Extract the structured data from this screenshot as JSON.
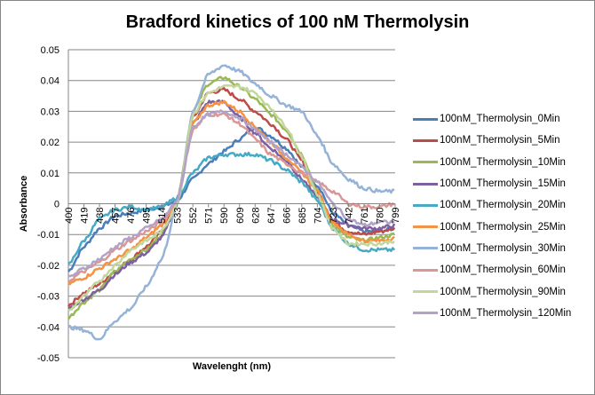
{
  "chart_data": {
    "type": "line",
    "title": "Bradford kinetics of 100 nM Thermolysin",
    "xlabel": "Wavelenght (nm)",
    "ylabel": "Absorbance",
    "ylim": [
      -0.05,
      0.05
    ],
    "yticks": [
      "0.05",
      "0.04",
      "0.03",
      "0.02",
      "0.01",
      "0",
      "-0.01",
      "-0.02",
      "-0.03",
      "-0.04",
      "-0.05"
    ],
    "ytick_values": [
      0.05,
      0.04,
      0.03,
      0.02,
      0.01,
      0,
      -0.01,
      -0.02,
      -0.03,
      -0.04,
      -0.05
    ],
    "grid": true,
    "legend_position": "right",
    "x": [
      400,
      419,
      438,
      457,
      476,
      495,
      514,
      533,
      552,
      571,
      590,
      609,
      628,
      647,
      666,
      685,
      704,
      723,
      742,
      761,
      780,
      799
    ],
    "xtick_labels": [
      "400",
      "419",
      "438",
      "457",
      "476",
      "495",
      "514",
      "533",
      "552",
      "571",
      "590",
      "609",
      "628",
      "647",
      "666",
      "685",
      "704",
      "723",
      "742",
      "761",
      "780",
      "799"
    ],
    "series": [
      {
        "name": "100nM_Thermolysin_0Min",
        "color": "#4a7ebb",
        "values": [
          -0.022,
          -0.014,
          -0.008,
          -0.004,
          -0.003,
          -0.002,
          -0.001,
          0.001,
          0.008,
          0.013,
          0.017,
          0.021,
          0.025,
          0.022,
          0.018,
          0.012,
          0.006,
          -0.003,
          -0.007,
          -0.009,
          -0.009,
          -0.008
        ]
      },
      {
        "name": "100nM_Thermolysin_5Min",
        "color": "#be4b48",
        "values": [
          -0.033,
          -0.029,
          -0.026,
          -0.022,
          -0.018,
          -0.014,
          -0.009,
          0.001,
          0.028,
          0.036,
          0.037,
          0.034,
          0.03,
          0.026,
          0.021,
          0.014,
          0.004,
          -0.006,
          -0.009,
          -0.01,
          -0.009,
          -0.008
        ]
      },
      {
        "name": "100nM_Thermolysin_10Min",
        "color": "#98b954",
        "values": [
          -0.037,
          -0.032,
          -0.028,
          -0.022,
          -0.018,
          -0.015,
          -0.01,
          0.001,
          0.03,
          0.039,
          0.041,
          0.038,
          0.034,
          0.029,
          0.024,
          0.016,
          0.004,
          -0.007,
          -0.011,
          -0.012,
          -0.011,
          -0.01
        ]
      },
      {
        "name": "100nM_Thermolysin_15Min",
        "color": "#7d60a0",
        "values": [
          -0.034,
          -0.031,
          -0.028,
          -0.023,
          -0.019,
          -0.016,
          -0.011,
          0.0,
          0.026,
          0.033,
          0.033,
          0.028,
          0.023,
          0.018,
          0.014,
          0.008,
          0.002,
          -0.005,
          -0.007,
          -0.008,
          -0.008,
          -0.007
        ]
      },
      {
        "name": "100nM_Thermolysin_20Min",
        "color": "#46aac5",
        "values": [
          -0.02,
          -0.012,
          -0.005,
          -0.002,
          -0.001,
          -0.002,
          -0.001,
          0.002,
          0.01,
          0.015,
          0.016,
          0.016,
          0.016,
          0.014,
          0.011,
          0.007,
          0.001,
          -0.008,
          -0.013,
          -0.015,
          -0.015,
          -0.015
        ]
      },
      {
        "name": "100nM_Thermolysin_25Min",
        "color": "#f69240",
        "values": [
          -0.026,
          -0.024,
          -0.021,
          -0.018,
          -0.015,
          -0.011,
          -0.007,
          0.001,
          0.026,
          0.032,
          0.033,
          0.03,
          0.025,
          0.02,
          0.015,
          0.01,
          0.004,
          -0.006,
          -0.01,
          -0.012,
          -0.012,
          -0.011
        ]
      },
      {
        "name": "100nM_Thermolysin_30Min",
        "color": "#95b3d7",
        "values": [
          -0.04,
          -0.041,
          -0.044,
          -0.038,
          -0.034,
          -0.027,
          -0.018,
          0.0,
          0.03,
          0.042,
          0.045,
          0.043,
          0.039,
          0.035,
          0.032,
          0.03,
          0.022,
          0.013,
          0.008,
          0.005,
          0.004,
          0.004
        ]
      },
      {
        "name": "100nM_Thermolysin_60Min",
        "color": "#d99795",
        "values": [
          -0.025,
          -0.022,
          -0.019,
          -0.015,
          -0.012,
          -0.009,
          -0.006,
          0.001,
          0.024,
          0.029,
          0.029,
          0.026,
          0.021,
          0.016,
          0.013,
          0.01,
          0.007,
          0.004,
          0.0,
          -0.001,
          -0.001,
          0.0
        ]
      },
      {
        "name": "100nM_Thermolysin_90Min",
        "color": "#c3d69b",
        "values": [
          -0.035,
          -0.03,
          -0.025,
          -0.02,
          -0.015,
          -0.012,
          -0.009,
          0.0,
          0.029,
          0.036,
          0.038,
          0.038,
          0.036,
          0.031,
          0.025,
          0.015,
          0.003,
          -0.008,
          -0.013,
          -0.013,
          -0.013,
          -0.012
        ]
      },
      {
        "name": "100nM_Thermolysin_120Min",
        "color": "#b3a2c7",
        "values": [
          -0.024,
          -0.021,
          -0.018,
          -0.014,
          -0.011,
          -0.008,
          -0.005,
          0.001,
          0.025,
          0.029,
          0.03,
          0.028,
          0.024,
          0.02,
          0.016,
          0.012,
          0.007,
          0.0,
          -0.005,
          -0.007,
          -0.006,
          -0.006
        ]
      }
    ]
  }
}
